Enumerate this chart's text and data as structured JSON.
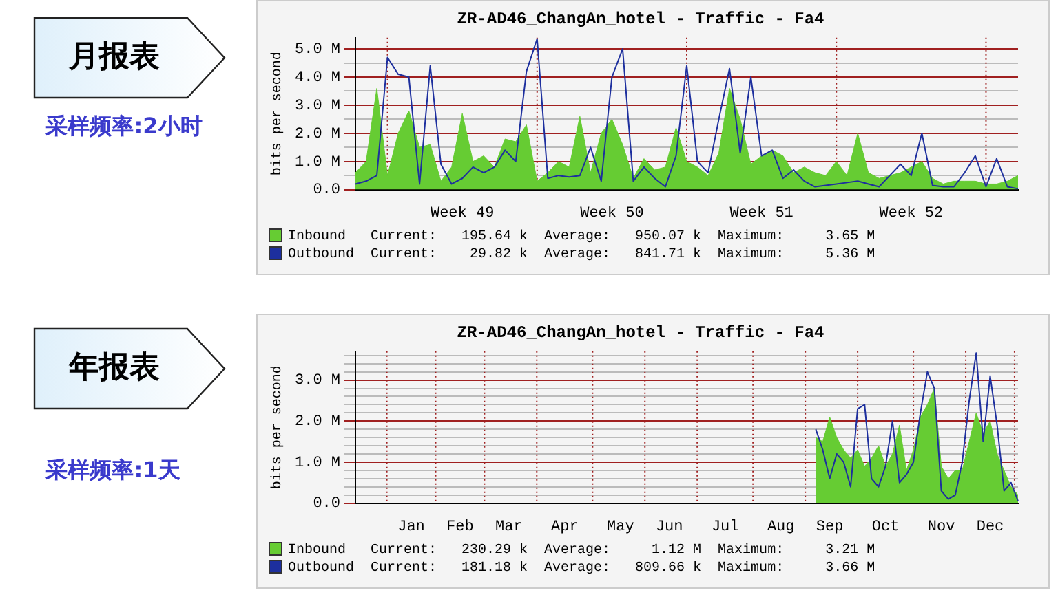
{
  "chart_data": [
    {
      "type": "area",
      "title": "ZR-AD46_ChangAn_hotel - Traffic - Fa4",
      "ylabel": "bits per second",
      "legend": "bottom",
      "grid": true,
      "marker": "none",
      "ylim": [
        0,
        5.4
      ],
      "categories": [
        null,
        null,
        null,
        null,
        null,
        null,
        null,
        null,
        null,
        null,
        "Week 49",
        null,
        null,
        null,
        null,
        null,
        null,
        null,
        null,
        null,
        null,
        null,
        null,
        null,
        "Week 50",
        null,
        null,
        null,
        null,
        null,
        null,
        null,
        null,
        null,
        null,
        null,
        null,
        null,
        "Week 51",
        null,
        null,
        null,
        null,
        null,
        null,
        null,
        null,
        null,
        null,
        null,
        null,
        null,
        "Week 52",
        null,
        null,
        null,
        null,
        null,
        null,
        null,
        null,
        null,
        null
      ],
      "yticks": [
        {
          "value": 0,
          "label": "0.0"
        },
        {
          "value": 0.5,
          "label": null
        },
        {
          "value": 1,
          "label": "1.0 M"
        },
        {
          "value": 1.5,
          "label": null
        },
        {
          "value": 2,
          "label": "2.0 M"
        },
        {
          "value": 2.5,
          "label": null
        },
        {
          "value": 3,
          "label": "3.0 M"
        },
        {
          "value": 3.5,
          "label": null
        },
        {
          "value": 4,
          "label": "4.0 M"
        },
        {
          "value": 4.5,
          "label": null
        },
        {
          "value": 5,
          "label": "5.0 M"
        }
      ],
      "annotations": [
        "Current:   195.64 k  Average:   950.07 k  Maximum:     3.65 M",
        "Current:    29.82 k  Average:   841.71 k  Maximum:     5.36 M",
        "月报表",
        "采样频率:2小时"
      ],
      "series": [
        {
          "name": "Inbound",
          "type": "area",
          "color": "#66cc33",
          "values": [
            0.6,
            1.0,
            3.6,
            0.5,
            2.0,
            2.8,
            1.5,
            1.6,
            0.3,
            0.8,
            2.7,
            1.0,
            1.2,
            0.8,
            1.8,
            1.7,
            2.3,
            0.3,
            0.6,
            1.0,
            0.8,
            2.6,
            0.6,
            2.0,
            2.5,
            1.6,
            0.4,
            1.1,
            0.7,
            0.8,
            2.2,
            1.0,
            0.8,
            0.5,
            1.3,
            3.6,
            2.5,
            0.9,
            1.2,
            1.4,
            1.2,
            0.6,
            0.8,
            0.6,
            0.5,
            1.0,
            0.5,
            2.0,
            0.6,
            0.4,
            0.5,
            0.6,
            0.8,
            1.0,
            0.4,
            0.2,
            0.3,
            0.3,
            0.3,
            0.2,
            0.2,
            0.3,
            0.5
          ]
        },
        {
          "name": "Outbound",
          "type": "line",
          "color": "#1d2f9e",
          "values": [
            0.2,
            0.3,
            0.5,
            4.7,
            4.1,
            4.0,
            0.2,
            4.4,
            0.9,
            0.2,
            0.4,
            0.8,
            0.6,
            0.8,
            1.4,
            1.0,
            4.2,
            5.36,
            0.4,
            0.5,
            0.45,
            0.5,
            1.5,
            0.3,
            4.0,
            5.0,
            0.3,
            0.8,
            0.4,
            0.1,
            1.2,
            4.4,
            1.0,
            0.6,
            2.5,
            4.3,
            1.3,
            4.0,
            1.2,
            1.4,
            0.4,
            0.7,
            0.3,
            0.1,
            0.15,
            0.2,
            0.25,
            0.3,
            0.2,
            0.1,
            0.5,
            0.9,
            0.5,
            2.0,
            0.15,
            0.1,
            0.1,
            0.6,
            1.2,
            0.1,
            1.1,
            0.1,
            0.03
          ]
        }
      ]
    },
    {
      "type": "area",
      "title": "ZR-AD46_ChangAn_hotel - Traffic - Fa4",
      "ylabel": "bits per second",
      "legend": "bottom",
      "grid": true,
      "marker": "none",
      "ylim": [
        0,
        3.7
      ],
      "categories": [
        null,
        null,
        null,
        null,
        null,
        null,
        null,
        null,
        "Jan",
        null,
        null,
        null,
        null,
        null,
        null,
        "Feb",
        null,
        null,
        null,
        null,
        null,
        null,
        "Mar",
        null,
        null,
        null,
        null,
        null,
        null,
        null,
        "Apr",
        null,
        null,
        null,
        null,
        null,
        null,
        null,
        "May",
        null,
        null,
        null,
        null,
        null,
        null,
        "Jun",
        null,
        null,
        null,
        null,
        null,
        null,
        null,
        "Jul",
        null,
        null,
        null,
        null,
        null,
        null,
        null,
        "Aug",
        null,
        null,
        null,
        null,
        null,
        null,
        "Sep",
        null,
        null,
        null,
        null,
        null,
        null,
        null,
        "Oct",
        null,
        null,
        null,
        null,
        null,
        null,
        null,
        "Nov",
        null,
        null,
        null,
        null,
        null,
        null,
        "Dec",
        null,
        null,
        null,
        null
      ],
      "yticks": [
        {
          "value": 0,
          "label": "0.0"
        },
        {
          "value": 0.2,
          "label": null
        },
        {
          "value": 0.4,
          "label": null
        },
        {
          "value": 0.6,
          "label": null
        },
        {
          "value": 0.8,
          "label": null
        },
        {
          "value": 1,
          "label": "1.0 M"
        },
        {
          "value": 1.2,
          "label": null
        },
        {
          "value": 1.4,
          "label": null
        },
        {
          "value": 1.6,
          "label": null
        },
        {
          "value": 1.8,
          "label": null
        },
        {
          "value": 2,
          "label": "2.0 M"
        },
        {
          "value": 2.2,
          "label": null
        },
        {
          "value": 2.4,
          "label": null
        },
        {
          "value": 2.6,
          "label": null
        },
        {
          "value": 2.8,
          "label": null
        },
        {
          "value": 3,
          "label": "3.0 M"
        },
        {
          "value": 3.2,
          "label": null
        },
        {
          "value": 3.4,
          "label": null
        },
        {
          "value": 3.6,
          "label": null
        }
      ],
      "annotations": [
        "Current:   230.29 k  Average:     1.12 M  Maximum:     3.21 M",
        "Current:   181.18 k  Average:   809.66 k  Maximum:     3.66 M",
        "年报表",
        "采样频率:1天"
      ],
      "series": [
        {
          "name": "Inbound",
          "type": "area",
          "color": "#66cc33",
          "values": [
            null,
            null,
            null,
            null,
            null,
            null,
            null,
            null,
            null,
            null,
            null,
            null,
            null,
            null,
            null,
            null,
            null,
            null,
            null,
            null,
            null,
            null,
            null,
            null,
            null,
            null,
            null,
            null,
            null,
            null,
            null,
            null,
            null,
            null,
            null,
            null,
            null,
            null,
            null,
            null,
            null,
            null,
            null,
            null,
            null,
            null,
            null,
            null,
            null,
            null,
            null,
            null,
            null,
            null,
            null,
            null,
            null,
            null,
            null,
            null,
            null,
            null,
            null,
            null,
            null,
            null,
            1.6,
            1.5,
            2.1,
            1.6,
            1.3,
            1.1,
            1.3,
            0.9,
            1.1,
            1.4,
            0.9,
            1.2,
            1.9,
            0.8,
            1.3,
            2.1,
            2.4,
            2.8,
            0.9,
            0.6,
            0.8,
            0.8,
            1.5,
            2.2,
            1.7,
            2.0,
            1.2,
            0.8,
            0.4,
            0.2
          ]
        },
        {
          "name": "Outbound",
          "type": "line",
          "color": "#1d2f9e",
          "values": [
            null,
            null,
            null,
            null,
            null,
            null,
            null,
            null,
            null,
            null,
            null,
            null,
            null,
            null,
            null,
            null,
            null,
            null,
            null,
            null,
            null,
            null,
            null,
            null,
            null,
            null,
            null,
            null,
            null,
            null,
            null,
            null,
            null,
            null,
            null,
            null,
            null,
            null,
            null,
            null,
            null,
            null,
            null,
            null,
            null,
            null,
            null,
            null,
            null,
            null,
            null,
            null,
            null,
            null,
            null,
            null,
            null,
            null,
            null,
            null,
            null,
            null,
            null,
            null,
            null,
            null,
            1.8,
            1.3,
            0.6,
            1.2,
            1.0,
            0.4,
            2.3,
            2.4,
            0.6,
            0.4,
            0.9,
            2.0,
            0.5,
            0.7,
            1.0,
            2.2,
            3.2,
            2.8,
            0.3,
            0.1,
            0.2,
            1.0,
            2.5,
            3.66,
            1.5,
            3.1,
            1.9,
            0.3,
            0.5,
            0.05
          ]
        }
      ]
    }
  ]
}
